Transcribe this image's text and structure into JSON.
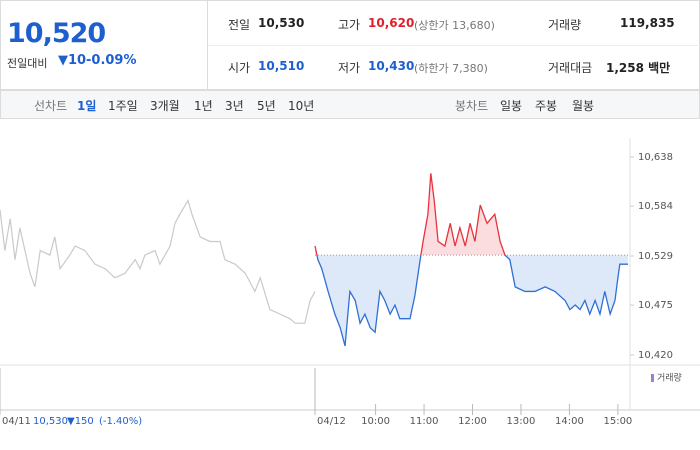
{
  "header": {
    "price": "10,520",
    "change_label": "전일대비",
    "change": "▼10",
    "rate": "-0.09%",
    "fields": [
      {
        "label": "전일",
        "value": "10,530"
      },
      {
        "label": "고가",
        "value": "10,620",
        "note": "(상한가 13,680)"
      },
      {
        "label": "거래량",
        "value": "119,835"
      },
      {
        "label": "시가",
        "value": "10,510"
      },
      {
        "label": "저가",
        "value": "10,430",
        "note": "(하한가 7,380)"
      },
      {
        "label": "거래대금",
        "value": "1,258 백만"
      }
    ]
  },
  "tabs": {
    "line_label": "선차트",
    "line_tabs": [
      "1일",
      "1주일",
      "3개월",
      "1년",
      "3년",
      "5년",
      "10년"
    ],
    "candle_label": "봉차트",
    "candle_tabs": [
      "일봉",
      "주봉",
      "월봉"
    ]
  },
  "footer": {
    "prev_price": "10,530",
    "prev_change": "▼150",
    "prev_rate": "(-1.40%)"
  },
  "chart_data": {
    "type": "line",
    "volume_label": "거래량",
    "ylim": [
      10420,
      10638
    ],
    "yticks": [
      {
        "value": 10638,
        "label": "10,638"
      },
      {
        "value": 10584,
        "label": "10,584"
      },
      {
        "value": 10529,
        "label": "10,529"
      },
      {
        "value": 10475,
        "label": "10,475"
      },
      {
        "value": 10420,
        "label": "10,420"
      }
    ],
    "xlim": [
      0,
      13
    ],
    "xticks": [
      {
        "value": 0,
        "label": "04/11"
      },
      {
        "value": 6.5,
        "label": "04/12"
      },
      {
        "value": 7.75,
        "label": "10:00"
      },
      {
        "value": 8.75,
        "label": "11:00"
      },
      {
        "value": 9.75,
        "label": "12:00"
      },
      {
        "value": 10.75,
        "label": "13:00"
      },
      {
        "value": 11.75,
        "label": "14:00"
      },
      {
        "value": 12.75,
        "label": "15:00"
      }
    ],
    "reference_line": 10530,
    "grid": false,
    "series": [
      {
        "color": "#c9c9c9",
        "x": [
          0,
          0.1,
          0.21,
          0.31,
          0.41,
          0.62,
          0.72,
          0.83,
          1.03,
          1.13,
          1.24,
          1.44,
          1.55,
          1.75,
          1.96,
          2.17,
          2.37,
          2.58,
          2.79,
          2.89,
          2.99,
          3.2,
          3.3,
          3.51,
          3.61,
          3.71,
          3.88,
          3.96,
          4.13,
          4.33,
          4.54,
          4.64,
          4.85,
          5.06,
          5.26,
          5.37,
          5.57,
          5.78,
          5.98,
          6.09,
          6.29,
          6.4,
          6.5
        ],
        "values": [
          10580,
          10535,
          10570,
          10525,
          10560,
          10510,
          10495,
          10535,
          10530,
          10550,
          10515,
          10530,
          10540,
          10535,
          10520,
          10515,
          10505,
          10510,
          10525,
          10515,
          10530,
          10535,
          10520,
          10540,
          10565,
          10575,
          10590,
          10575,
          10550,
          10545,
          10545,
          10525,
          10520,
          10510,
          10490,
          10505,
          10470,
          10465,
          10460,
          10455,
          10455,
          10480,
          10490
        ]
      },
      {
        "color_above": "#e8323c",
        "color_below": "#2f6fd6",
        "fill_above": "#fbdde0",
        "fill_below": "#dde8f8",
        "x": [
          6.5,
          6.56,
          6.64,
          6.77,
          6.91,
          7.02,
          7.12,
          7.22,
          7.33,
          7.43,
          7.53,
          7.64,
          7.74,
          7.84,
          7.94,
          8.05,
          8.15,
          8.25,
          8.46,
          8.56,
          8.67,
          8.73,
          8.83,
          8.89,
          8.96,
          9.04,
          9.18,
          9.29,
          9.39,
          9.49,
          9.6,
          9.7,
          9.8,
          9.91,
          10.05,
          10.21,
          10.32,
          10.42,
          10.52,
          10.63,
          10.83,
          11.04,
          11.25,
          11.45,
          11.66,
          11.76,
          11.87,
          11.97,
          12.07,
          12.17,
          12.28,
          12.38,
          12.48,
          12.59,
          12.69,
          12.75,
          12.79,
          12.96
        ],
        "values": [
          10540,
          10525,
          10515,
          10490,
          10465,
          10450,
          10430,
          10490,
          10480,
          10455,
          10465,
          10450,
          10445,
          10490,
          10480,
          10465,
          10475,
          10460,
          10460,
          10485,
          10525,
          10545,
          10575,
          10620,
          10590,
          10545,
          10540,
          10565,
          10540,
          10560,
          10540,
          10565,
          10545,
          10585,
          10565,
          10575,
          10545,
          10530,
          10525,
          10495,
          10490,
          10490,
          10495,
          10490,
          10480,
          10470,
          10475,
          10470,
          10480,
          10465,
          10480,
          10465,
          10490,
          10465,
          10480,
          10505,
          10520,
          10520
        ]
      }
    ]
  }
}
